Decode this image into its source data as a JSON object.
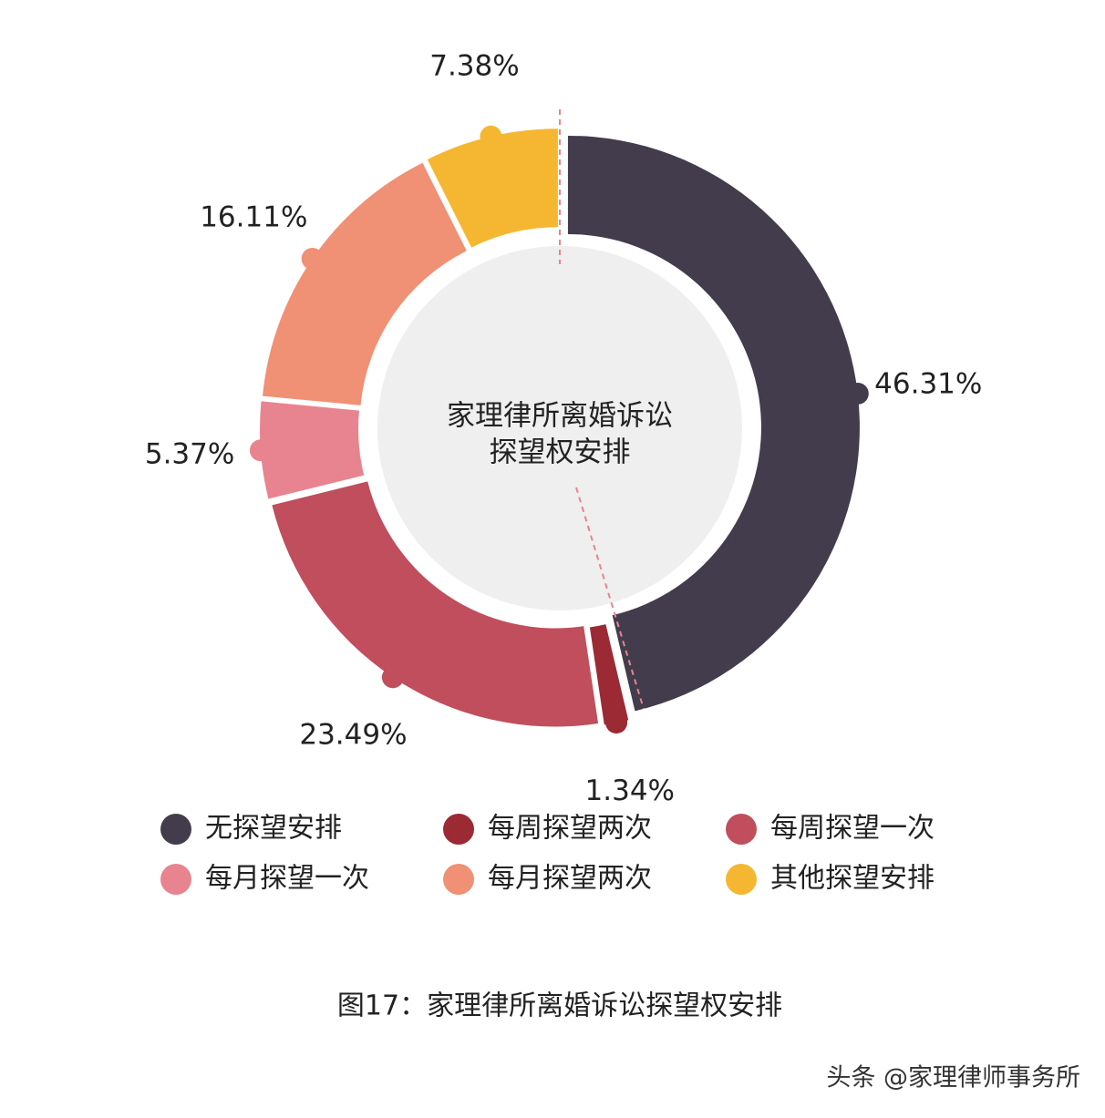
{
  "chart_data": {
    "type": "donut",
    "center_text": [
      "家理律所离婚诉讼",
      "探望权安排"
    ],
    "categories": [
      "无探望安排",
      "每周探望两次",
      "每周探望一次",
      "每月探望一次",
      "每月探望两次",
      "其他探望安排"
    ],
    "values": [
      46.31,
      1.34,
      23.49,
      5.37,
      16.11,
      7.38
    ],
    "value_labels": [
      "46.31%",
      "1.34%",
      "23.49%",
      "5.37%",
      "16.11%",
      "7.38%"
    ],
    "colors": [
      "#433c4c",
      "#9b2a35",
      "#c04e5d",
      "#e8848f",
      "#f09074",
      "#f5b731"
    ],
    "caption": "图17：家理律所离婚诉讼探望权安排",
    "watermark": "头条 @家理律师事务所"
  }
}
